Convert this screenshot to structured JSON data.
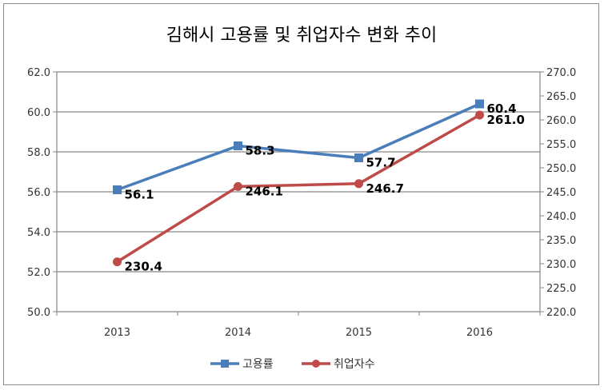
{
  "chart_data": {
    "type": "line",
    "title": "김해시 고용률 및 취업자수 변화 추이",
    "categories": [
      "2013",
      "2014",
      "2015",
      "2016"
    ],
    "y_left": {
      "ticks": [
        "50.0",
        "52.0",
        "54.0",
        "56.0",
        "58.0",
        "60.0",
        "62.0"
      ],
      "ylim": [
        50,
        62
      ]
    },
    "y_right": {
      "ticks": [
        "220.0",
        "225.0",
        "230.0",
        "235.0",
        "240.0",
        "245.0",
        "250.0",
        "255.0",
        "260.0",
        "265.0",
        "270.0"
      ],
      "ylim": [
        220,
        270
      ]
    },
    "grid": true,
    "legend_position": "bottom",
    "series": [
      {
        "name": "고용률",
        "axis": "left",
        "values": [
          56.1,
          58.3,
          57.7,
          60.4
        ],
        "labels": [
          "56.1",
          "58.3",
          "57.7",
          "60.4"
        ],
        "color": "#4a7ebb",
        "marker": "square"
      },
      {
        "name": "취업자수",
        "axis": "right",
        "values": [
          230.4,
          246.1,
          246.7,
          261.0
        ],
        "labels": [
          "230.4",
          "246.1",
          "246.7",
          "261.0"
        ],
        "color": "#be4b48",
        "marker": "circle"
      }
    ]
  }
}
